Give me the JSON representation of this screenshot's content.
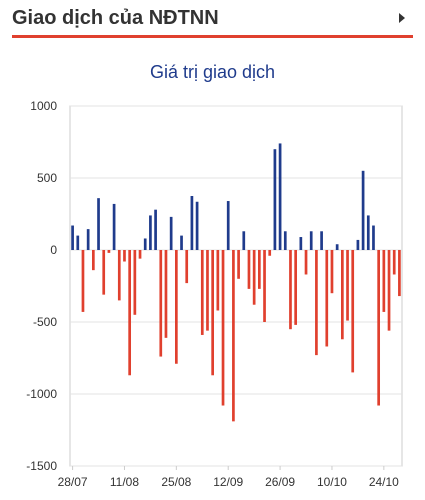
{
  "header": {
    "title": "Giao dịch của NĐTNN",
    "arrow_icon": "chevron-right-icon"
  },
  "chart_data": {
    "type": "bar",
    "title": "Giá trị giao dịch",
    "ylim": [
      -1500,
      1000
    ],
    "yticks": [
      1000,
      500,
      0,
      -500,
      -1000,
      -1500
    ],
    "grid": true,
    "colors": {
      "positive": "#1f3b8c",
      "negative": "#e0402e"
    },
    "x_tick_labels": [
      {
        "label": "28/07",
        "index": 0
      },
      {
        "label": "11/08",
        "index": 10
      },
      {
        "label": "25/08",
        "index": 20
      },
      {
        "label": "12/09",
        "index": 30
      },
      {
        "label": "26/09",
        "index": 40
      },
      {
        "label": "10/10",
        "index": 50
      },
      {
        "label": "24/10",
        "index": 60
      }
    ],
    "values": [
      170,
      100,
      -430,
      145,
      -140,
      360,
      -310,
      -20,
      320,
      -350,
      -80,
      -870,
      -450,
      -60,
      80,
      240,
      280,
      -740,
      -610,
      230,
      -790,
      100,
      -230,
      375,
      335,
      -590,
      -560,
      -870,
      -420,
      -1080,
      340,
      -1190,
      -200,
      130,
      -270,
      -380,
      -270,
      -500,
      -40,
      700,
      740,
      130,
      -550,
      -520,
      90,
      -170,
      130,
      -730,
      130,
      -670,
      -300,
      40,
      -620,
      -490,
      -850,
      70,
      550,
      240,
      170,
      -1080,
      -430,
      -560,
      -170,
      -320
    ]
  }
}
